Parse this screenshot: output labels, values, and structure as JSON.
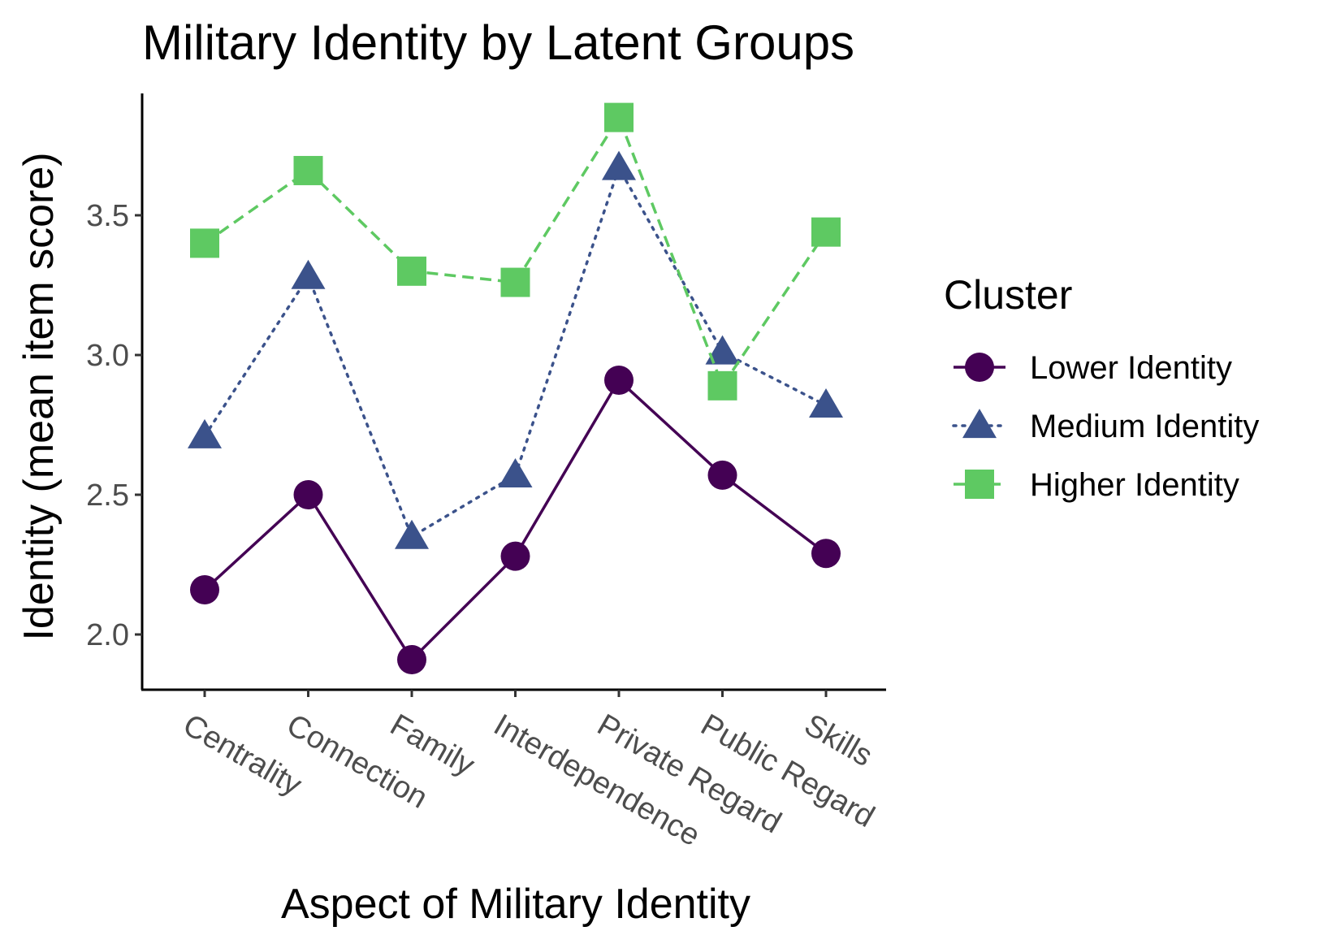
{
  "chart_data": {
    "type": "line",
    "title": "Military Identity by Latent Groups",
    "xlabel": "Aspect of Military Identity",
    "ylabel": "Identity (mean item score)",
    "categories": [
      "Centrality",
      "Connection",
      "Family",
      "Interdependence",
      "Private Regard",
      "Public Regard",
      "Skills"
    ],
    "ylim": [
      1.81,
      3.92
    ],
    "yticks": [
      2.0,
      2.5,
      3.0,
      3.5
    ],
    "ytick_labels": [
      "2.0",
      "2.5",
      "3.0",
      "3.5"
    ],
    "grid": false,
    "legend": {
      "title": "Cluster",
      "position": "right"
    },
    "series": [
      {
        "name": "Lower Identity",
        "color": "#440154",
        "marker": "circle",
        "line": "solid",
        "values": [
          2.16,
          2.5,
          1.91,
          2.28,
          2.91,
          2.57,
          2.29
        ]
      },
      {
        "name": "Medium Identity",
        "color": "#3b528b",
        "marker": "triangle",
        "line": "dotted",
        "values": [
          2.71,
          3.28,
          2.35,
          2.57,
          3.67,
          3.01,
          2.82
        ]
      },
      {
        "name": "Higher Identity",
        "color": "#5ec962",
        "marker": "square",
        "line": "dashed",
        "values": [
          3.4,
          3.66,
          3.3,
          3.26,
          3.85,
          2.89,
          3.44
        ]
      }
    ]
  }
}
